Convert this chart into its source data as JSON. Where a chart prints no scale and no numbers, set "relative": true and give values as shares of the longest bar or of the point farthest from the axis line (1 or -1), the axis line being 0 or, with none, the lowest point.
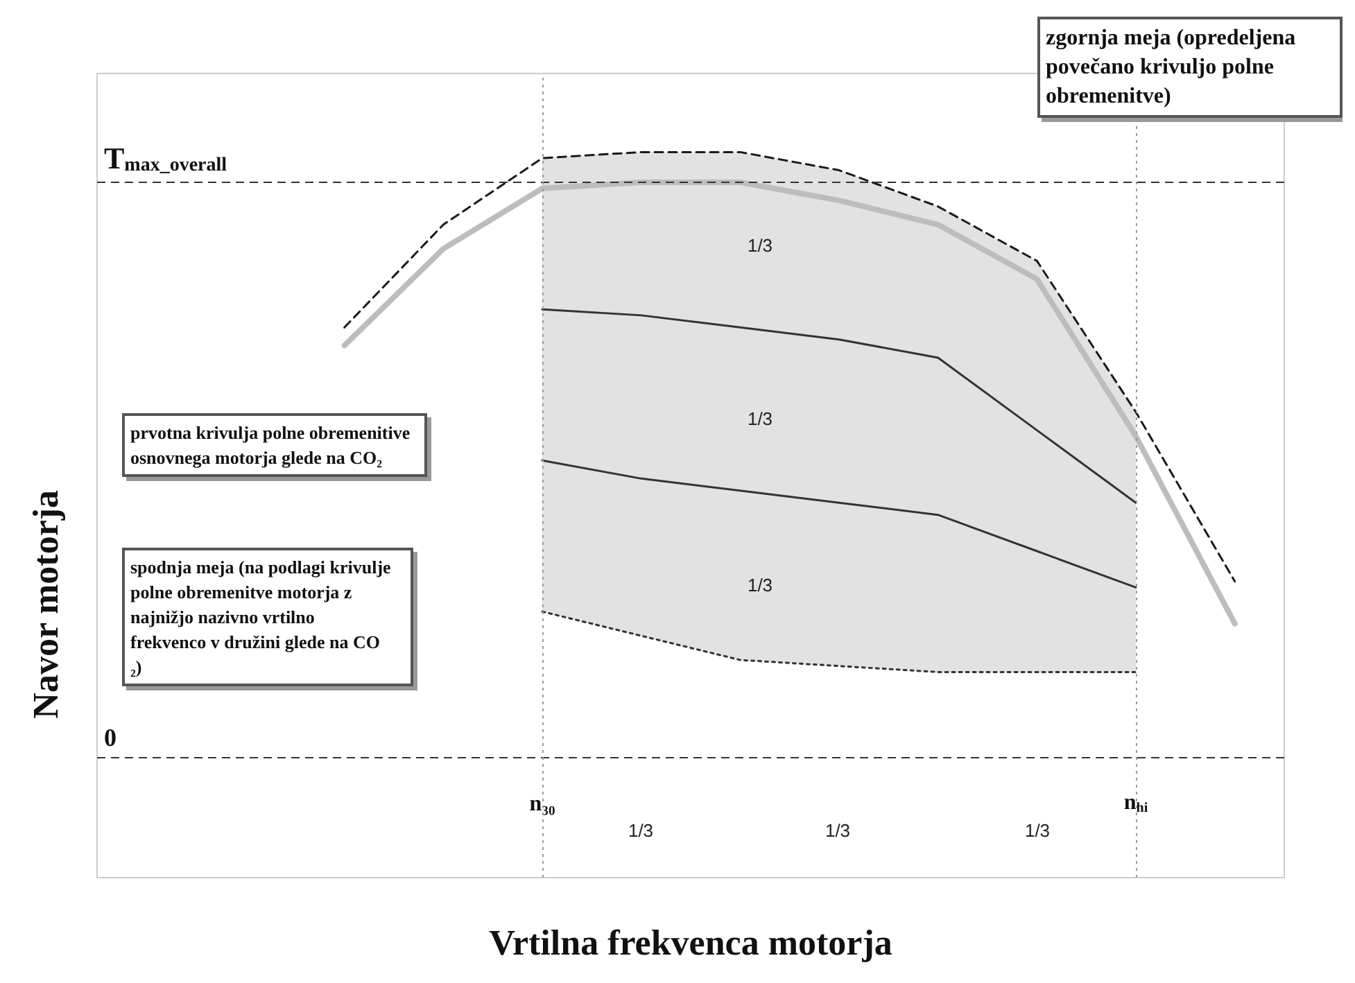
{
  "chart_data": {
    "type": "line",
    "xlabel": "Vrtilna frekvenca motorja",
    "ylabel": "Navor motorja",
    "relative": true,
    "marker": "none",
    "grid": false,
    "categories": [
      null,
      null,
      null,
      null,
      "n₃₀",
      null,
      null,
      null,
      null,
      null,
      "n$_{hi}$",
      null
    ],
    "series": [
      {
        "color": "#bdbdbd",
        "line_style": "solid",
        "values": [
          null,
          null,
          0.68,
          0.84,
          0.94,
          0.95,
          0.95,
          0.92,
          0.88,
          0.79,
          0.53,
          0.22
        ]
      },
      {
        "color": "#1a1a1a",
        "line_style": "dashed",
        "values": [
          null,
          null,
          0.71,
          0.88,
          0.99,
          1.0,
          1.0,
          0.97,
          0.91,
          0.82,
          0.57,
          0.29
        ]
      },
      {
        "color": "#333333",
        "line_style": "dotted",
        "values": [
          null,
          null,
          null,
          null,
          0.24,
          0.2,
          0.16,
          0.15,
          0.14,
          0.14,
          0.14,
          null
        ],
        "lower": [
          null,
          null,
          null,
          null,
          0.24,
          0.2,
          0.16,
          0.15,
          0.14,
          0.14,
          0.14,
          null
        ],
        "upper": [
          null,
          null,
          null,
          null,
          0.99,
          1.0,
          1.0,
          0.97,
          0.91,
          0.82,
          0.57,
          null
        ]
      },
      {
        "color": "#333333",
        "line_style": "solid",
        "values": [
          null,
          null,
          null,
          null,
          0.74,
          0.73,
          0.71,
          0.69,
          0.66,
          0.54,
          0.42,
          null
        ]
      },
      {
        "color": "#333333",
        "line_style": "solid",
        "values": [
          null,
          null,
          null,
          null,
          0.49,
          0.46,
          0.44,
          0.42,
          0.4,
          0.34,
          0.28,
          null
        ]
      }
    ],
    "ref_lines": [
      {
        "axis": "y",
        "value": 0,
        "label": "0",
        "color": "#333333",
        "line_style": "dashed"
      },
      {
        "axis": "y",
        "value": 0.95,
        "label": "T$_{max_overall}$",
        "color": "#333333",
        "line_style": "dashed"
      },
      {
        "axis": "x",
        "value": "n₃₀",
        "color": "#999999",
        "line_style": "dotted"
      },
      {
        "axis": "x",
        "value": "n$_{hi}$",
        "color": "#999999",
        "line_style": "dotted"
      }
    ],
    "annotations": [
      "zgornja meja (opredeljena povečano krivuljo polne obremenitve)",
      "prvotna krivulja polne obremenitive osnovnega motorja glede na CO₂",
      "spodnja meja (na podlagi krivulje polne obremenitve motorja z najnižjo nazivno vrtilno frekvenco v družini glede na CO₂)",
      "1/3",
      "1/3",
      "1/3",
      "1/3",
      "1/3",
      "1/3"
    ]
  }
}
